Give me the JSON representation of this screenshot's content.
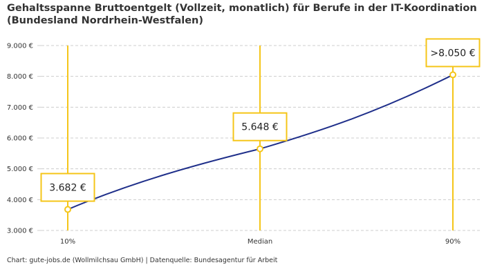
{
  "title": {
    "line1": "Gehaltsspanne Bruttoentgelt (Vollzeit, monatlich) für Berufe in der IT-Koordination",
    "line2": "(Bundesland Nordrhein-Westfalen)"
  },
  "credit": "Chart: gute-jobs.de (Wollmilchsau GmbH) | Datenquelle: Bundesagentur für Arbeit",
  "colors": {
    "line": "#1f2f8a",
    "accent": "#f5c518",
    "grid": "#cccccc",
    "text": "#333333"
  },
  "chart_data": {
    "type": "line",
    "categories": [
      "10%",
      "Median",
      "90%"
    ],
    "values": [
      3682,
      5648,
      8050
    ],
    "data_labels": [
      "3.682 €",
      "5.648 €",
      ">8.050 €"
    ],
    "ylim": [
      3000,
      9000
    ],
    "yticks": [
      3000,
      4000,
      5000,
      6000,
      7000,
      8000,
      9000
    ],
    "ytick_labels": [
      "3.000 €",
      "4.000 €",
      "5.000 €",
      "6.000 €",
      "7.000 €",
      "8.000 €",
      "9.000 €"
    ],
    "xlabel": "",
    "ylabel": "",
    "grid": true,
    "legend": "none"
  }
}
